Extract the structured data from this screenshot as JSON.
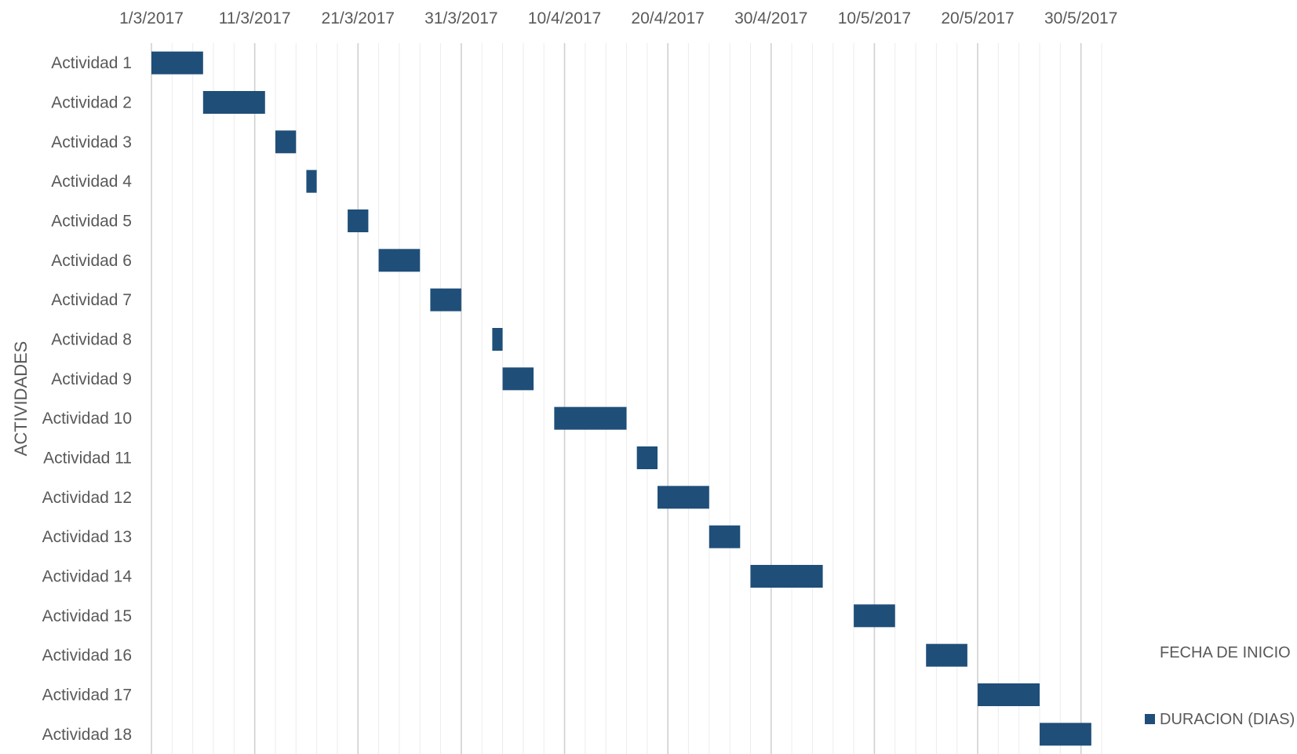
{
  "chart_data": {
    "type": "bar",
    "subtype": "gantt-stacked-horizontal",
    "ylabel": "ACTIVIDADES",
    "x_axis_position": "top",
    "grid": true,
    "legend_position": "right",
    "xlim": [
      "2017-03-01",
      "2017-06-01"
    ],
    "x_ticks": [
      "1/3/2017",
      "11/3/2017",
      "21/3/2017",
      "31/3/2017",
      "10/4/2017",
      "20/4/2017",
      "30/4/2017",
      "10/5/2017",
      "20/5/2017",
      "30/5/2017"
    ],
    "categories": [
      "Actividad 1",
      "Actividad 2",
      "Actividad 3",
      "Actividad 4",
      "Actividad 5",
      "Actividad 6",
      "Actividad 7",
      "Actividad 8",
      "Actividad 9",
      "Actividad 10",
      "Actividad 11",
      "Actividad 12",
      "Actividad 13",
      "Actividad 14",
      "Actividad 15",
      "Actividad 16",
      "Actividad 17",
      "Actividad 18"
    ],
    "series": [
      {
        "name": "FECHA DE INICIO",
        "color": "none",
        "values": [
          "2017-03-01",
          "2017-03-06",
          "2017-03-13",
          "2017-03-16",
          "2017-03-20",
          "2017-03-23",
          "2017-03-28",
          "2017-04-03",
          "2017-04-04",
          "2017-04-09",
          "2017-04-17",
          "2017-04-19",
          "2017-04-24",
          "2017-04-28",
          "2017-05-08",
          "2017-05-15",
          "2017-05-20",
          "2017-05-26"
        ]
      },
      {
        "name": "DURACION (DIAS)",
        "color": "#1f4e79",
        "values": [
          5,
          6,
          2,
          1,
          2,
          4,
          3,
          1,
          3,
          7,
          2,
          5,
          3,
          7,
          4,
          4,
          6,
          5
        ]
      }
    ]
  }
}
